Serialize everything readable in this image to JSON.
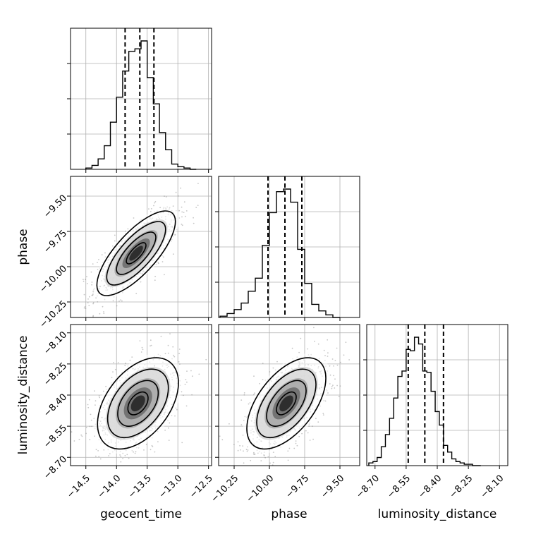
{
  "chart_data": {
    "type": "corner",
    "parameters": [
      "geocent_time",
      "phase",
      "luminosity_distance"
    ],
    "axes": {
      "geocent_time": {
        "label": "geocent_time",
        "range": [
          -14.75,
          -12.45
        ],
        "ticks": [
          -14.5,
          -14.0,
          -13.5,
          -13.0,
          -12.5
        ],
        "tick_labels": [
          "−14.5",
          "−14.0",
          "−13.5",
          "−13.0",
          "−12.5"
        ],
        "quantiles": [
          -13.86,
          -13.62,
          -13.39
        ],
        "histogram": {
          "edges": [
            -14.5,
            -14.4,
            -14.3,
            -14.2,
            -14.1,
            -14.0,
            -13.9,
            -13.8,
            -13.7,
            -13.6,
            -13.5,
            -13.4,
            -13.3,
            -13.2,
            -13.1,
            -13.0,
            -12.9,
            -12.8,
            -12.7
          ],
          "counts": [
            0.01,
            0.03,
            0.08,
            0.18,
            0.36,
            0.55,
            0.75,
            0.9,
            0.92,
            0.98,
            0.7,
            0.5,
            0.28,
            0.15,
            0.04,
            0.02,
            0.01,
            0.0
          ]
        }
      },
      "phase": {
        "label": "phase",
        "range": [
          -10.36,
          -9.36
        ],
        "ticks": [
          -10.25,
          -10.0,
          -9.75,
          -9.5
        ],
        "tick_labels": [
          "−10.25",
          "−10.00",
          "−9.75",
          "−9.50"
        ],
        "quantiles": [
          -10.01,
          -9.89,
          -9.77
        ],
        "histogram": {
          "edges": [
            -10.35,
            -10.3,
            -10.25,
            -10.2,
            -10.15,
            -10.1,
            -10.05,
            -10.0,
            -9.95,
            -9.9,
            -9.85,
            -9.8,
            -9.75,
            -9.7,
            -9.65,
            -9.6,
            -9.55,
            -9.5
          ],
          "counts": [
            0.01,
            0.03,
            0.06,
            0.11,
            0.2,
            0.3,
            0.55,
            0.8,
            0.96,
            0.98,
            0.88,
            0.52,
            0.26,
            0.1,
            0.05,
            0.02,
            0.0
          ]
        }
      },
      "luminosity_distance": {
        "label": "luminosity_distance",
        "range": [
          -8.74,
          -8.06
        ],
        "ticks": [
          -8.7,
          -8.55,
          -8.4,
          -8.25,
          -8.1
        ],
        "tick_labels": [
          "−8.70",
          "−8.55",
          "−8.40",
          "−8.25",
          "−8.10"
        ],
        "quantiles": [
          -8.54,
          -8.46,
          -8.37
        ],
        "histogram": {
          "edges": [
            -8.73,
            -8.71,
            -8.69,
            -8.67,
            -8.65,
            -8.63,
            -8.61,
            -8.59,
            -8.57,
            -8.55,
            -8.53,
            -8.51,
            -8.49,
            -8.47,
            -8.45,
            -8.43,
            -8.41,
            -8.39,
            -8.37,
            -8.35,
            -8.33,
            -8.31,
            -8.29,
            -8.27,
            -8.25,
            -8.23,
            -8.21,
            -8.19
          ],
          "counts": [
            0.02,
            0.03,
            0.06,
            0.14,
            0.23,
            0.35,
            0.5,
            0.66,
            0.7,
            0.86,
            0.85,
            0.95,
            0.9,
            0.7,
            0.69,
            0.55,
            0.4,
            0.3,
            0.15,
            0.1,
            0.05,
            0.03,
            0.02,
            0.01,
            0.01,
            0.0,
            0.0
          ]
        }
      }
    },
    "pairs": [
      {
        "x": "geocent_time",
        "y": "phase",
        "mean": [
          -13.68,
          -9.905
        ],
        "sd": [
          0.32,
          0.15
        ],
        "correlation": 0.75,
        "levels": [
          0.5,
          1.0,
          1.5,
          2.0
        ]
      },
      {
        "x": "geocent_time",
        "y": "luminosity_distance",
        "mean": [
          -13.65,
          -8.44
        ],
        "sd": [
          0.33,
          0.11
        ],
        "correlation": 0.45,
        "levels": [
          0.5,
          1.0,
          1.5,
          2.0
        ]
      },
      {
        "x": "phase",
        "y": "luminosity_distance",
        "mean": [
          -9.88,
          -8.44
        ],
        "sd": [
          0.14,
          0.11
        ],
        "correlation": 0.55,
        "levels": [
          0.5,
          1.0,
          1.5,
          2.0
        ]
      }
    ],
    "grid": true,
    "colors": {
      "line": "#000000",
      "grid": "#b0b0b0",
      "points": "#808080"
    }
  }
}
